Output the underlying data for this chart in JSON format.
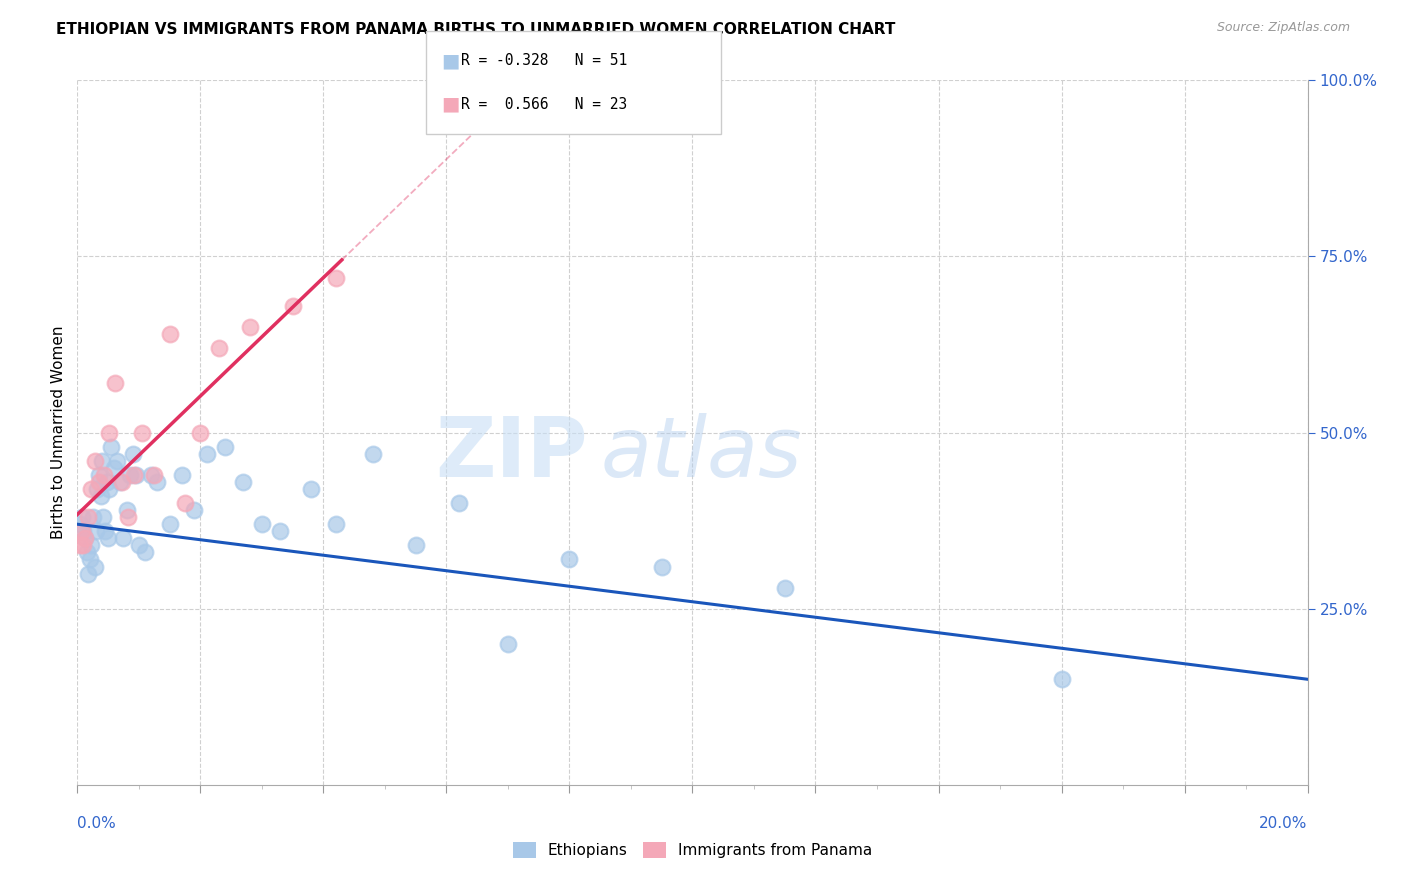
{
  "title": "ETHIOPIAN VS IMMIGRANTS FROM PANAMA BIRTHS TO UNMARRIED WOMEN CORRELATION CHART",
  "source": "Source: ZipAtlas.com",
  "ylabel": "Births to Unmarried Women",
  "xlim": [
    0.0,
    20.0
  ],
  "ylim": [
    0.0,
    100.0
  ],
  "legend_blue_r": "R = -0.328",
  "legend_blue_n": "N = 51",
  "legend_pink_r": "R =  0.566",
  "legend_pink_n": "N = 23",
  "blue_scatter_color": "#a8c8e8",
  "pink_scatter_color": "#f4a8b8",
  "blue_line_color": "#1a56bb",
  "pink_line_color": "#e03060",
  "title_fontsize": 11,
  "source_fontsize": 9,
  "ethiopians_x": [
    0.05,
    0.08,
    0.1,
    0.12,
    0.15,
    0.18,
    0.2,
    0.22,
    0.25,
    0.28,
    0.3,
    0.32,
    0.35,
    0.38,
    0.4,
    0.42,
    0.45,
    0.48,
    0.5,
    0.52,
    0.55,
    0.6,
    0.65,
    0.7,
    0.75,
    0.8,
    0.85,
    0.9,
    0.95,
    1.0,
    1.1,
    1.2,
    1.3,
    1.5,
    1.7,
    1.9,
    2.1,
    2.4,
    2.7,
    3.0,
    3.3,
    3.8,
    4.2,
    4.8,
    5.5,
    6.2,
    7.0,
    8.0,
    9.5,
    11.5,
    16.0
  ],
  "ethiopians_y": [
    37,
    38,
    36,
    35,
    33,
    30,
    32,
    34,
    38,
    31,
    36,
    42,
    44,
    41,
    46,
    38,
    36,
    43,
    35,
    42,
    48,
    45,
    46,
    43,
    35,
    39,
    44,
    47,
    44,
    34,
    33,
    44,
    43,
    37,
    44,
    39,
    47,
    48,
    43,
    37,
    36,
    42,
    37,
    47,
    34,
    40,
    20,
    32,
    31,
    28,
    15
  ],
  "panama_x": [
    0.04,
    0.07,
    0.1,
    0.13,
    0.17,
    0.22,
    0.28,
    0.35,
    0.43,
    0.52,
    0.62,
    0.72,
    0.82,
    0.92,
    1.05,
    1.25,
    1.5,
    1.75,
    2.0,
    2.3,
    2.8,
    3.5,
    4.2
  ],
  "panama_y": [
    34,
    36,
    34,
    35,
    38,
    42,
    46,
    43,
    44,
    50,
    57,
    43,
    38,
    44,
    50,
    44,
    64,
    40,
    50,
    62,
    65,
    68,
    72
  ]
}
